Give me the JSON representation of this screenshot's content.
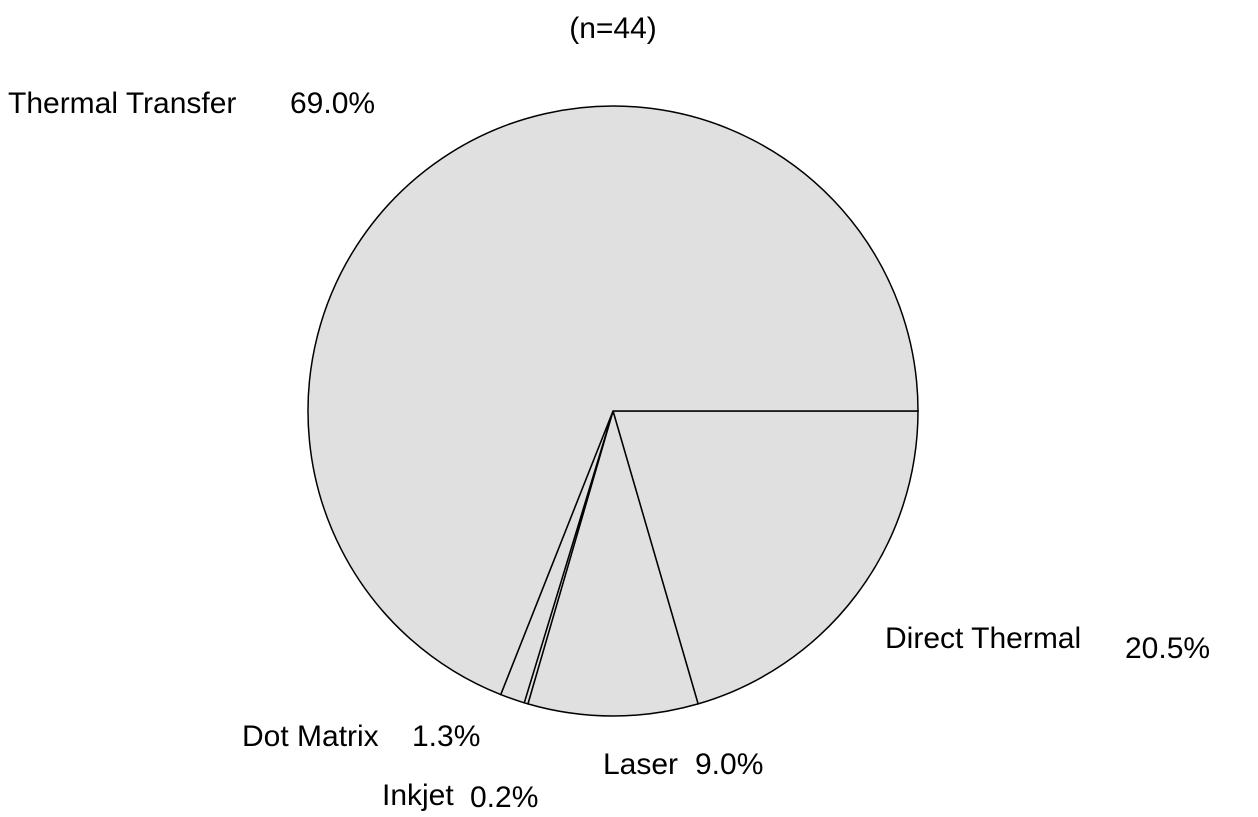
{
  "chart_data": {
    "type": "pie",
    "title": "(n=44)",
    "categories": [
      "Direct Thermal",
      "Laser",
      "Inkjet",
      "Dot Matrix",
      "Thermal Transfer"
    ],
    "values": [
      20.5,
      9.0,
      0.2,
      1.3,
      69.0
    ],
    "value_labels": [
      "20.5%",
      "9.0%",
      "0.2%",
      "1.3%",
      "69.0%"
    ],
    "color": "#e0e0e0"
  }
}
